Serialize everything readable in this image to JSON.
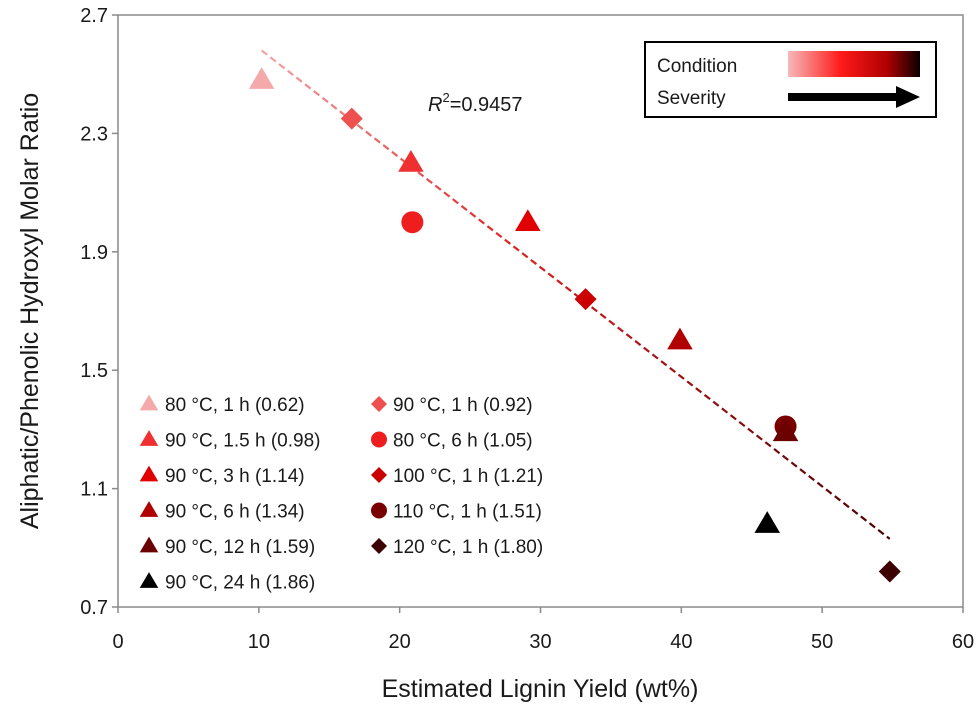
{
  "chart_data": {
    "type": "scatter",
    "xlabel": "Estimated Lignin Yield (wt%)",
    "ylabel": "Aliphatic/Phenolic Hydroxyl Molar Ratio",
    "xlim": [
      0,
      60
    ],
    "ylim": [
      0.7,
      2.7
    ],
    "x_ticks": [
      "0",
      "10",
      "20",
      "30",
      "40",
      "50",
      "60"
    ],
    "y_ticks": [
      "0.7",
      "1.1",
      "1.5",
      "1.9",
      "2.3",
      "2.7"
    ],
    "annotation": {
      "prefix": "R",
      "sup": "2",
      "suffix": "=0.9457"
    },
    "inset": {
      "line1": "Condition",
      "line2": "Severity"
    },
    "trendline": {
      "x": [
        10.2,
        54.8
      ],
      "y": [
        2.58,
        0.93
      ],
      "color_start": "#f4a6a6",
      "color_end": "#4a0000"
    },
    "series": [
      {
        "name": "80 °C, 1 h (0.62)",
        "marker": "triangle",
        "color": "#f4aaaa",
        "x": [
          10.2
        ],
        "y": [
          2.48
        ]
      },
      {
        "name": "90 °C, 1 h (0.92)",
        "marker": "diamond",
        "color": "#ee5050",
        "x": [
          16.6
        ],
        "y": [
          2.35
        ]
      },
      {
        "name": "90 °C, 1.5 h (0.98)",
        "marker": "triangle",
        "color": "#ee3030",
        "x": [
          20.8
        ],
        "y": [
          2.2
        ]
      },
      {
        "name": "80 °C, 6 h (1.05)",
        "marker": "circle",
        "color": "#ee1e1e",
        "x": [
          20.9
        ],
        "y": [
          2.0
        ]
      },
      {
        "name": "90 °C, 3 h (1.14)",
        "marker": "triangle",
        "color": "#e00000",
        "x": [
          29.1
        ],
        "y": [
          2.0
        ]
      },
      {
        "name": "100 °C, 1 h (1.21)",
        "marker": "diamond",
        "color": "#cc0000",
        "x": [
          33.2
        ],
        "y": [
          1.74
        ]
      },
      {
        "name": "90 °C, 6 h (1.34)",
        "marker": "triangle",
        "color": "#b00000",
        "x": [
          39.9
        ],
        "y": [
          1.6
        ]
      },
      {
        "name": "110 °C, 1 h (1.51)",
        "marker": "circle",
        "color": "#7a0000",
        "x": [
          47.4
        ],
        "y": [
          1.31
        ]
      },
      {
        "name": "90 °C, 12 h (1.59)",
        "marker": "triangle",
        "color": "#6a0000",
        "x": [
          47.4
        ],
        "y": [
          1.29
        ]
      },
      {
        "name": "120 °C, 1 h (1.80)",
        "marker": "diamond",
        "color": "#3c0000",
        "x": [
          54.8
        ],
        "y": [
          0.82
        ]
      },
      {
        "name": "90 °C, 24 h (1.86)",
        "marker": "triangle",
        "color": "#000000",
        "x": [
          46.1
        ],
        "y": [
          0.98
        ]
      }
    ],
    "legend": {
      "left": [
        "80 °C, 1 h (0.62)",
        "90 °C, 1.5 h (0.98)",
        "90 °C, 3 h (1.14)",
        "90 °C, 6 h (1.34)",
        "90 °C, 12 h (1.59)",
        "90 °C, 24 h (1.86)"
      ],
      "right": [
        "90 °C, 1 h (0.92)",
        "80 °C, 6 h (1.05)",
        "100 °C, 1 h (1.21)",
        "110 °C, 1 h (1.51)",
        "120 °C, 1 h (1.80)"
      ]
    }
  }
}
